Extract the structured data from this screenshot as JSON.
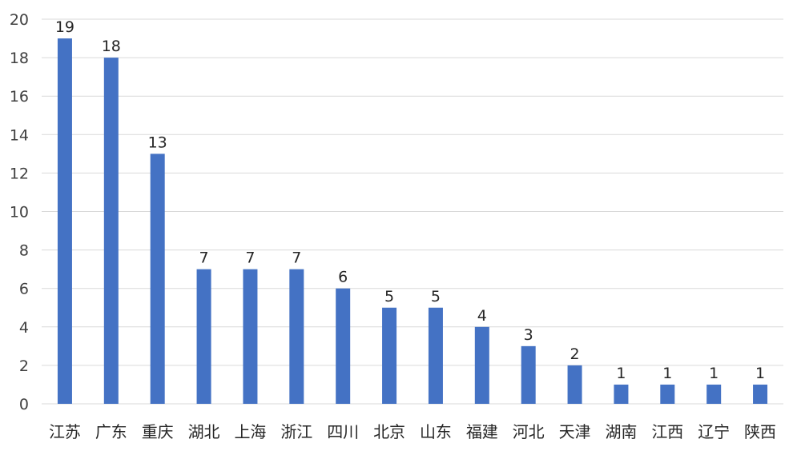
{
  "chart_data": {
    "type": "bar",
    "title": "",
    "xlabel": "",
    "ylabel": "",
    "categories": [
      "江苏",
      "广东",
      "重庆",
      "湖北",
      "上海",
      "浙江",
      "四川",
      "北京",
      "山东",
      "福建",
      "河北",
      "天津",
      "湖南",
      "江西",
      "辽宁",
      "陕西"
    ],
    "values": [
      19,
      18,
      13,
      7,
      7,
      7,
      6,
      5,
      5,
      4,
      3,
      2,
      1,
      1,
      1,
      1
    ],
    "ylim": [
      0,
      20
    ],
    "yticks": [
      0,
      2,
      4,
      6,
      8,
      10,
      12,
      14,
      16,
      18,
      20
    ],
    "grid": true,
    "data_labels": true,
    "bar_color": "#4472c4",
    "grid_color": "#d9d9d9"
  }
}
